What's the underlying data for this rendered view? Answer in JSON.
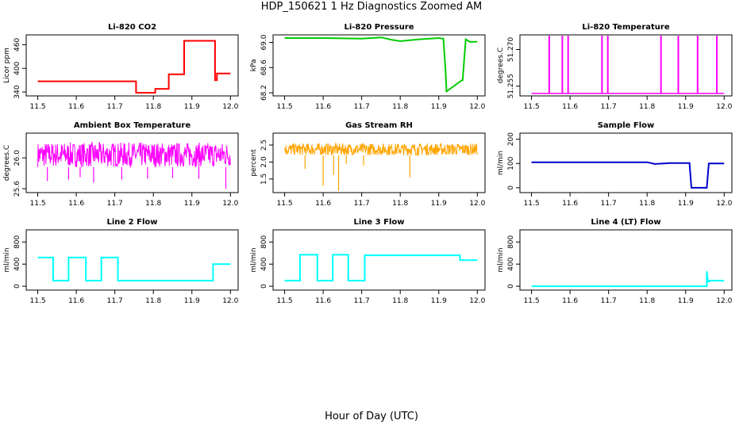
{
  "figure": {
    "title": "HDP_150621  1 Hz Diagnostics Zoomed AM",
    "xlabel": "Hour of Day (UTC)"
  },
  "chart_data": [
    {
      "type": "line",
      "title": "Li-820 CO2",
      "ylabel": "Licor ppm",
      "color": "#ff0000",
      "xlim": [
        11.47,
        12.02
      ],
      "xticks": [
        11.5,
        11.6,
        11.7,
        11.8,
        11.9,
        12.0
      ],
      "xtick_labels": [
        "11.5",
        "11.6",
        "11.7",
        "11.8",
        "11.9",
        "12.0"
      ],
      "ylim": [
        330,
        485
      ],
      "yticks": [
        340,
        400,
        460
      ],
      "ytick_labels": [
        "340",
        "400",
        "460"
      ],
      "x": [
        11.5,
        11.755,
        11.755,
        11.805,
        11.805,
        11.84,
        11.84,
        11.88,
        11.88,
        11.96,
        11.96,
        11.965,
        11.965,
        12.0
      ],
      "y": [
        367,
        367,
        338,
        338,
        348,
        348,
        385,
        385,
        470,
        470,
        370,
        370,
        387,
        387
      ]
    },
    {
      "type": "line",
      "title": "Li-820 Pressure",
      "ylabel": "kPa",
      "color": "#00cc00",
      "xlim": [
        11.47,
        12.02
      ],
      "xticks": [
        11.5,
        11.6,
        11.7,
        11.8,
        11.9,
        12.0
      ],
      "xtick_labels": [
        "11.5",
        "11.6",
        "11.7",
        "11.8",
        "11.9",
        "12.0"
      ],
      "ylim": [
        68.15,
        69.12
      ],
      "yticks": [
        68.2,
        68.6,
        69.0
      ],
      "ytick_labels": [
        "68.2",
        "68.6",
        "69.0"
      ],
      "x": [
        11.5,
        11.6,
        11.7,
        11.75,
        11.78,
        11.8,
        11.85,
        11.9,
        11.912,
        11.918,
        11.92,
        11.96,
        11.962,
        11.97,
        11.98,
        12.0
      ],
      "y": [
        69.07,
        69.07,
        69.06,
        69.08,
        69.04,
        69.02,
        69.05,
        69.07,
        69.06,
        68.5,
        68.22,
        68.4,
        68.4,
        69.05,
        69.01,
        69.01
      ]
    },
    {
      "type": "line",
      "title": "Li-820 Temperature",
      "ylabel": "degrees.C",
      "color": "#ff00ff",
      "xlim": [
        11.47,
        12.02
      ],
      "xticks": [
        11.5,
        11.6,
        11.7,
        11.8,
        11.9,
        12.0
      ],
      "xtick_labels": [
        "11.5",
        "11.6",
        "11.7",
        "11.8",
        "11.9",
        "12.0"
      ],
      "ylim": [
        51.251,
        51.276
      ],
      "yticks": [
        51.255,
        51.27
      ],
      "ytick_labels": [
        "51.255",
        "51.270"
      ],
      "baseline": 51.252,
      "spikes": [
        11.546,
        11.58,
        11.595,
        11.683,
        11.698,
        11.836,
        11.881,
        11.931,
        11.981
      ]
    },
    {
      "type": "line",
      "title": "Ambient Box Temperature",
      "ylabel": "degrees.C",
      "color": "#ff00ff",
      "xlim": [
        11.47,
        12.02
      ],
      "xticks": [
        11.5,
        11.6,
        11.7,
        11.8,
        11.9,
        12.0
      ],
      "xtick_labels": [
        "11.5",
        "11.6",
        "11.7",
        "11.8",
        "11.9",
        "12.0"
      ],
      "ylim": [
        25.55,
        26.32
      ],
      "yticks": [
        25.6,
        26.0
      ],
      "ytick_labels": [
        "25.6",
        "26.0"
      ],
      "band_low": 25.88,
      "band_high": 26.2,
      "dips": [
        [
          11.525,
          25.7
        ],
        [
          11.58,
          25.72
        ],
        [
          11.61,
          25.75
        ],
        [
          11.645,
          25.68
        ],
        [
          11.718,
          25.72
        ],
        [
          11.785,
          25.73
        ],
        [
          11.85,
          25.74
        ],
        [
          11.918,
          25.73
        ],
        [
          11.988,
          25.6
        ]
      ]
    },
    {
      "type": "line",
      "title": "Gas Stream RH",
      "ylabel": "percent",
      "color": "#ffa500",
      "xlim": [
        11.47,
        12.02
      ],
      "xticks": [
        11.5,
        11.6,
        11.7,
        11.8,
        11.9,
        12.0
      ],
      "xtick_labels": [
        "11.5",
        "11.6",
        "11.7",
        "11.8",
        "11.9",
        "12.0"
      ],
      "ylim": [
        1.1,
        2.85
      ],
      "yticks": [
        1.5,
        2.0,
        2.5
      ],
      "ytick_labels": [
        "1.5",
        "2.0",
        "2.5"
      ],
      "band_low": 2.2,
      "band_high": 2.55,
      "dips": [
        [
          11.6,
          1.3
        ],
        [
          11.627,
          1.62
        ],
        [
          11.64,
          1.15
        ],
        [
          11.553,
          1.8
        ],
        [
          11.66,
          1.95
        ],
        [
          11.825,
          1.55
        ],
        [
          11.705,
          1.9
        ]
      ]
    },
    {
      "type": "line",
      "title": "Sample Flow",
      "ylabel": "ml/min",
      "color": "#0000cc",
      "xlim": [
        11.47,
        12.02
      ],
      "xticks": [
        11.5,
        11.6,
        11.7,
        11.8,
        11.9,
        12.0
      ],
      "xtick_labels": [
        "11.5",
        "11.6",
        "11.7",
        "11.8",
        "11.9",
        "12.0"
      ],
      "ylim": [
        -20,
        225
      ],
      "yticks": [
        0,
        100,
        200
      ],
      "ytick_labels": [
        "0",
        "100",
        "200"
      ],
      "x": [
        11.5,
        11.8,
        11.82,
        11.86,
        11.91,
        11.915,
        11.955,
        11.96,
        12.0
      ],
      "y": [
        105,
        105,
        98,
        102,
        102,
        0,
        0,
        100,
        100
      ]
    },
    {
      "type": "line",
      "title": "Line 2 Flow",
      "ylabel": "ml/min",
      "color": "#00ffff",
      "xlim": [
        11.47,
        12.02
      ],
      "xticks": [
        11.5,
        11.6,
        11.7,
        11.8,
        11.9,
        12.0
      ],
      "xtick_labels": [
        "11.5",
        "11.6",
        "11.7",
        "11.8",
        "11.9",
        "12.0"
      ],
      "ylim": [
        -70,
        1020
      ],
      "yticks": [
        0,
        400,
        800
      ],
      "ytick_labels": [
        "0",
        "400",
        "800"
      ],
      "x": [
        11.5,
        11.54,
        11.54,
        11.58,
        11.58,
        11.625,
        11.625,
        11.665,
        11.665,
        11.708,
        11.708,
        11.955,
        11.955,
        12.0
      ],
      "y": [
        520,
        520,
        100,
        100,
        520,
        520,
        100,
        100,
        520,
        520,
        100,
        100,
        400,
        400
      ]
    },
    {
      "type": "line",
      "title": "Line 3 Flow",
      "ylabel": "ml/min",
      "color": "#00ffff",
      "xlim": [
        11.47,
        12.02
      ],
      "xticks": [
        11.5,
        11.6,
        11.7,
        11.8,
        11.9,
        12.0
      ],
      "xtick_labels": [
        "11.5",
        "11.6",
        "11.7",
        "11.8",
        "11.9",
        "12.0"
      ],
      "ylim": [
        -70,
        1020
      ],
      "yticks": [
        0,
        400,
        800
      ],
      "ytick_labels": [
        "0",
        "400",
        "800"
      ],
      "x": [
        11.5,
        11.54,
        11.54,
        11.585,
        11.585,
        11.625,
        11.625,
        11.665,
        11.665,
        11.708,
        11.708,
        11.955,
        11.955,
        12.0
      ],
      "y": [
        100,
        100,
        570,
        570,
        100,
        100,
        570,
        570,
        100,
        100,
        560,
        560,
        470,
        470
      ]
    },
    {
      "type": "line",
      "title": "Line 4 (LT) Flow",
      "ylabel": "ml/min",
      "color": "#00ffff",
      "xlim": [
        11.47,
        12.02
      ],
      "xticks": [
        11.5,
        11.6,
        11.7,
        11.8,
        11.9,
        12.0
      ],
      "xtick_labels": [
        "11.5",
        "11.6",
        "11.7",
        "11.8",
        "11.9",
        "12.0"
      ],
      "ylim": [
        -70,
        1020
      ],
      "yticks": [
        0,
        400,
        800
      ],
      "ytick_labels": [
        "0",
        "400",
        "800"
      ],
      "x": [
        11.5,
        11.955,
        11.955,
        11.958,
        11.962,
        11.962,
        12.0
      ],
      "y": [
        0,
        0,
        270,
        80,
        90,
        100,
        100
      ]
    }
  ]
}
